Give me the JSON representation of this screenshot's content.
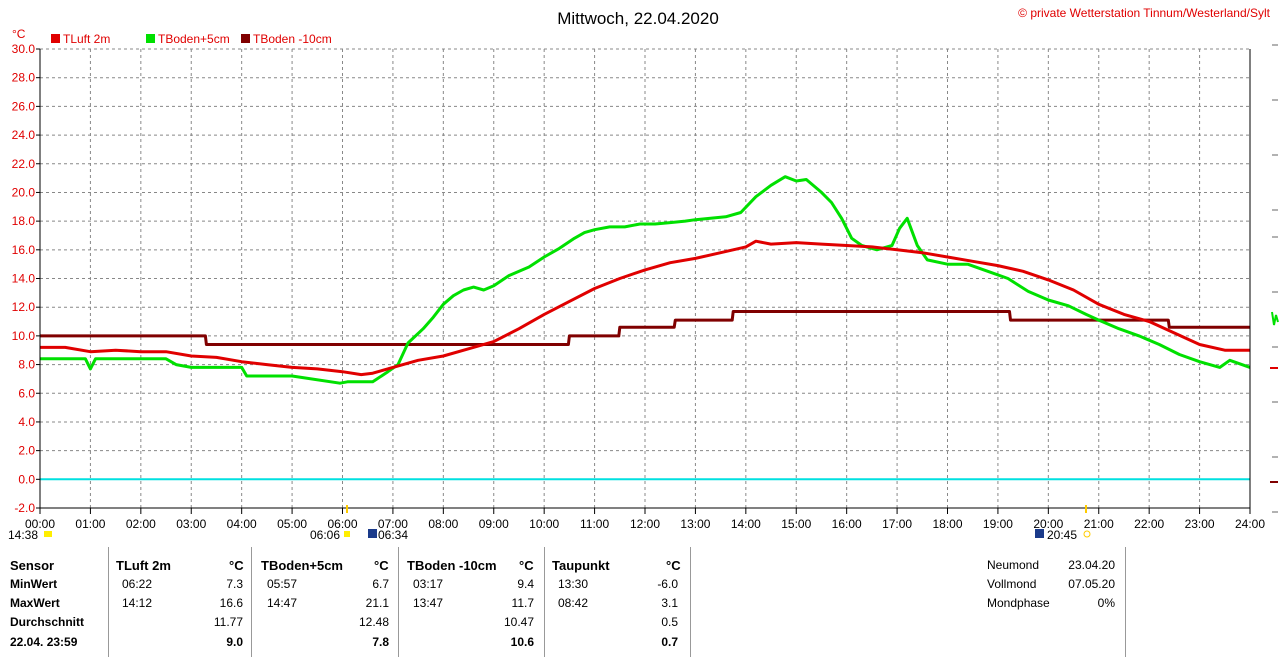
{
  "header": {
    "title": "Mittwoch, 22.04.2020",
    "copyright": "© private Wetterstation Tinnum/Westerland/Sylt",
    "y_unit": "°C"
  },
  "colors": {
    "tluft": "#e00000",
    "tboden5": "#00e000",
    "tboden10": "#800000",
    "zero_line": "#00e0e0",
    "grid": "#888888"
  },
  "chart_data": {
    "type": "line",
    "title": "Mittwoch, 22.04.2020",
    "ylabel": "°C",
    "ylim": [
      -2.0,
      30.0
    ],
    "xlim": [
      0,
      24
    ],
    "y_ticks": [
      "30.0",
      "28.0",
      "26.0",
      "24.0",
      "22.0",
      "20.0",
      "18.0",
      "16.0",
      "14.0",
      "12.0",
      "10.0",
      "8.0",
      "6.0",
      "4.0",
      "2.0",
      "0.0",
      "-2.0"
    ],
    "x_ticks": [
      "00:00",
      "01:00",
      "02:00",
      "03:00",
      "04:00",
      "05:00",
      "06:00",
      "07:00",
      "08:00",
      "09:00",
      "10:00",
      "11:00",
      "12:00",
      "13:00",
      "14:00",
      "15:00",
      "16:00",
      "17:00",
      "18:00",
      "19:00",
      "20:00",
      "21:00",
      "22:00",
      "23:00",
      "24:00"
    ],
    "grid": true,
    "legend_position": "top-left",
    "series": [
      {
        "name": "TLuft 2m",
        "color": "#e00000",
        "x": [
          0,
          0.5,
          1,
          1.5,
          2,
          2.5,
          3,
          3.5,
          4,
          4.5,
          5,
          5.5,
          6,
          6.37,
          6.6,
          7,
          7.5,
          8,
          8.5,
          9,
          9.5,
          10,
          10.5,
          11,
          11.5,
          12,
          12.5,
          13,
          13.5,
          14,
          14.2,
          14.5,
          15,
          15.5,
          16,
          16.5,
          17,
          17.5,
          18,
          18.5,
          19,
          19.5,
          20,
          20.5,
          21,
          21.5,
          22,
          22.5,
          23,
          23.5,
          24
        ],
        "values": [
          9.2,
          9.2,
          8.9,
          9.0,
          8.9,
          8.9,
          8.6,
          8.5,
          8.2,
          8.0,
          7.8,
          7.7,
          7.5,
          7.3,
          7.4,
          7.8,
          8.3,
          8.6,
          9.1,
          9.6,
          10.5,
          11.5,
          12.4,
          13.3,
          14.0,
          14.6,
          15.1,
          15.4,
          15.8,
          16.2,
          16.6,
          16.4,
          16.5,
          16.4,
          16.3,
          16.2,
          16.0,
          15.8,
          15.5,
          15.2,
          14.9,
          14.5,
          13.9,
          13.2,
          12.2,
          11.5,
          11.0,
          10.2,
          9.4,
          9.0,
          9.0
        ]
      },
      {
        "name": "TBoden+5cm",
        "color": "#00e000",
        "x": [
          0,
          0.9,
          1.0,
          1.1,
          2.5,
          2.7,
          3.0,
          4.0,
          4.1,
          5.0,
          5.95,
          6.1,
          6.6,
          6.9,
          7.1,
          7.3,
          7.6,
          7.8,
          8.0,
          8.2,
          8.4,
          8.6,
          8.8,
          9.0,
          9.3,
          9.7,
          10.0,
          10.3,
          10.6,
          10.8,
          11.0,
          11.3,
          11.6,
          11.9,
          12.2,
          12.5,
          12.8,
          13.0,
          13.3,
          13.6,
          13.9,
          14.2,
          14.5,
          14.78,
          15.0,
          15.2,
          15.5,
          15.7,
          15.9,
          16.1,
          16.3,
          16.6,
          16.9,
          17.05,
          17.2,
          17.4,
          17.6,
          18.0,
          18.4,
          18.8,
          19.2,
          19.6,
          20.0,
          20.4,
          20.75,
          21.0,
          21.4,
          21.8,
          22.2,
          22.6,
          23.0,
          23.4,
          23.6,
          24
        ],
        "values": [
          8.4,
          8.4,
          7.7,
          8.4,
          8.4,
          8.0,
          7.8,
          7.8,
          7.2,
          7.2,
          6.7,
          6.8,
          6.8,
          7.5,
          8.0,
          9.5,
          10.5,
          11.3,
          12.2,
          12.8,
          13.2,
          13.4,
          13.2,
          13.5,
          14.2,
          14.8,
          15.5,
          16.1,
          16.8,
          17.2,
          17.4,
          17.6,
          17.6,
          17.8,
          17.8,
          17.9,
          18.0,
          18.1,
          18.2,
          18.3,
          18.6,
          19.7,
          20.5,
          21.1,
          20.8,
          20.9,
          20.0,
          19.3,
          18.2,
          16.8,
          16.3,
          16.0,
          16.3,
          17.5,
          18.2,
          16.3,
          15.3,
          15.0,
          15.0,
          14.5,
          14.0,
          13.1,
          12.5,
          12.1,
          11.5,
          11.1,
          10.5,
          10.0,
          9.4,
          8.7,
          8.2,
          7.8,
          8.3,
          7.8
        ]
      },
      {
        "name": "TBoden -10cm",
        "color": "#800000",
        "x": [
          0,
          3.28,
          3.3,
          10.48,
          10.5,
          11.48,
          11.5,
          12.58,
          12.6,
          13.73,
          13.75,
          19.23,
          19.25,
          22.38,
          22.4,
          24
        ],
        "values": [
          10.0,
          10.0,
          9.4,
          9.4,
          10.0,
          10.0,
          10.6,
          10.6,
          11.1,
          11.1,
          11.7,
          11.7,
          11.1,
          11.1,
          10.6,
          10.6
        ]
      },
      {
        "name": "Zero line",
        "color": "#00e0e0",
        "x": [
          0,
          24
        ],
        "values": [
          0,
          0
        ]
      }
    ],
    "sun_markers": {
      "left_offscreen_time": "14:38",
      "sunrise": "06:06",
      "sunrise2": "06:34",
      "sunset": "20:45"
    }
  },
  "table": {
    "columns": [
      {
        "header": "Sensor",
        "rows": [
          "MinWert",
          "MaxWert",
          "Durchschnitt",
          "22.04. 23:59"
        ]
      },
      {
        "header": "TLuft 2m",
        "unit": "°C",
        "times": [
          "06:22",
          "14:12",
          "",
          ""
        ],
        "values": [
          "7.3",
          "16.6",
          "11.77",
          "9.0"
        ]
      },
      {
        "header": "TBoden+5cm",
        "unit": "°C",
        "times": [
          "05:57",
          "14:47",
          "",
          ""
        ],
        "values": [
          "6.7",
          "21.1",
          "12.48",
          "7.8"
        ]
      },
      {
        "header": "TBoden -10cm",
        "unit": "°C",
        "times": [
          "03:17",
          "13:47",
          "",
          ""
        ],
        "values": [
          "9.4",
          "11.7",
          "10.47",
          "10.6"
        ]
      },
      {
        "header": "Taupunkt",
        "unit": "°C",
        "times": [
          "13:30",
          "08:42",
          "",
          ""
        ],
        "values": [
          "-6.0",
          "3.1",
          "0.5",
          "0.7"
        ]
      }
    ],
    "moon": [
      {
        "label": "Neumond",
        "value": "23.04.20"
      },
      {
        "label": "Vollmond",
        "value": "07.05.20"
      },
      {
        "label": "Mondphase",
        "value": "0%"
      }
    ]
  }
}
